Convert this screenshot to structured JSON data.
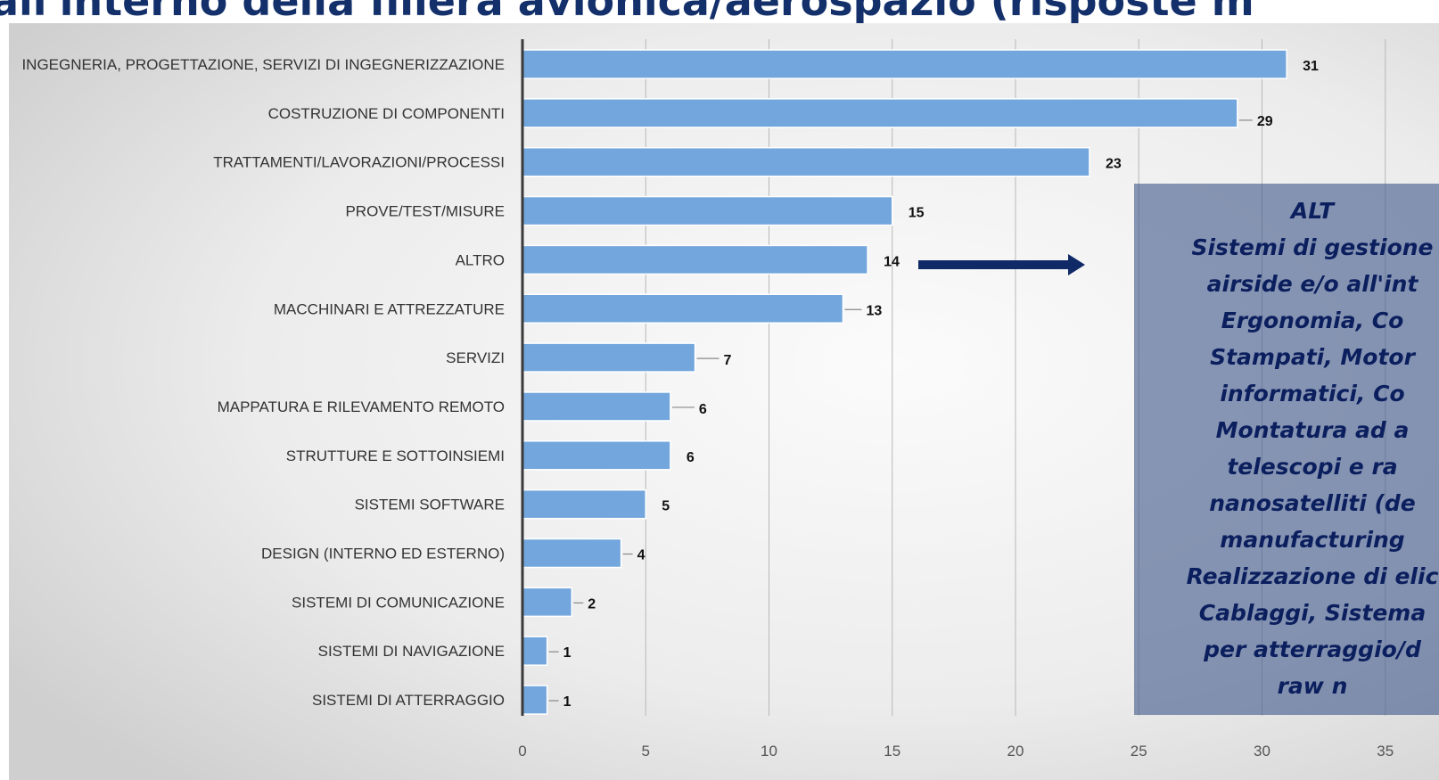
{
  "title": "all'interno della filiera avionica/aerospazio (risposte m",
  "chart_data": {
    "type": "bar",
    "orientation": "horizontal",
    "categories": [
      "INGEGNERIA, PROGETTAZIONE, SERVIZI DI INGEGNERIZZAZIONE",
      "COSTRUZIONE DI COMPONENTI",
      "TRATTAMENTI/LAVORAZIONI/PROCESSI",
      "PROVE/TEST/MISURE",
      "ALTRO",
      "MACCHINARI E ATTREZZATURE",
      "SERVIZI",
      "MAPPATURA E RILEVAMENTO REMOTO",
      "STRUTTURE E SOTTOINSIEMI",
      "SISTEMI SOFTWARE",
      "DESIGN (INTERNO ED ESTERNO)",
      "SISTEMI DI COMUNICAZIONE",
      "SISTEMI DI NAVIGAZIONE",
      "SISTEMI DI ATTERRAGGIO"
    ],
    "values": [
      31,
      29,
      23,
      15,
      14,
      13,
      7,
      6,
      6,
      5,
      4,
      2,
      1,
      1
    ],
    "xlim": [
      0,
      35
    ],
    "xticks": [
      "0",
      "5",
      "10",
      "15",
      "20",
      "25",
      "30",
      "35"
    ],
    "grid": true,
    "bar_color": "#72a6dc",
    "gridline_color": "#b8b8b8"
  },
  "note": {
    "lines": [
      "ALT",
      "Sistemi di gestione",
      "airside e/o all'int",
      "Ergonomia, Co",
      "Stampati, Motor",
      "informatici, Co",
      "Montatura ad a",
      "telescopi e ra",
      "nanosatelliti (de",
      "manufacturing",
      "Realizzazione di elic",
      "Cablaggi, Sistema",
      "per atterraggio/d",
      "raw n"
    ],
    "arrow_color": "#0f2a66"
  }
}
